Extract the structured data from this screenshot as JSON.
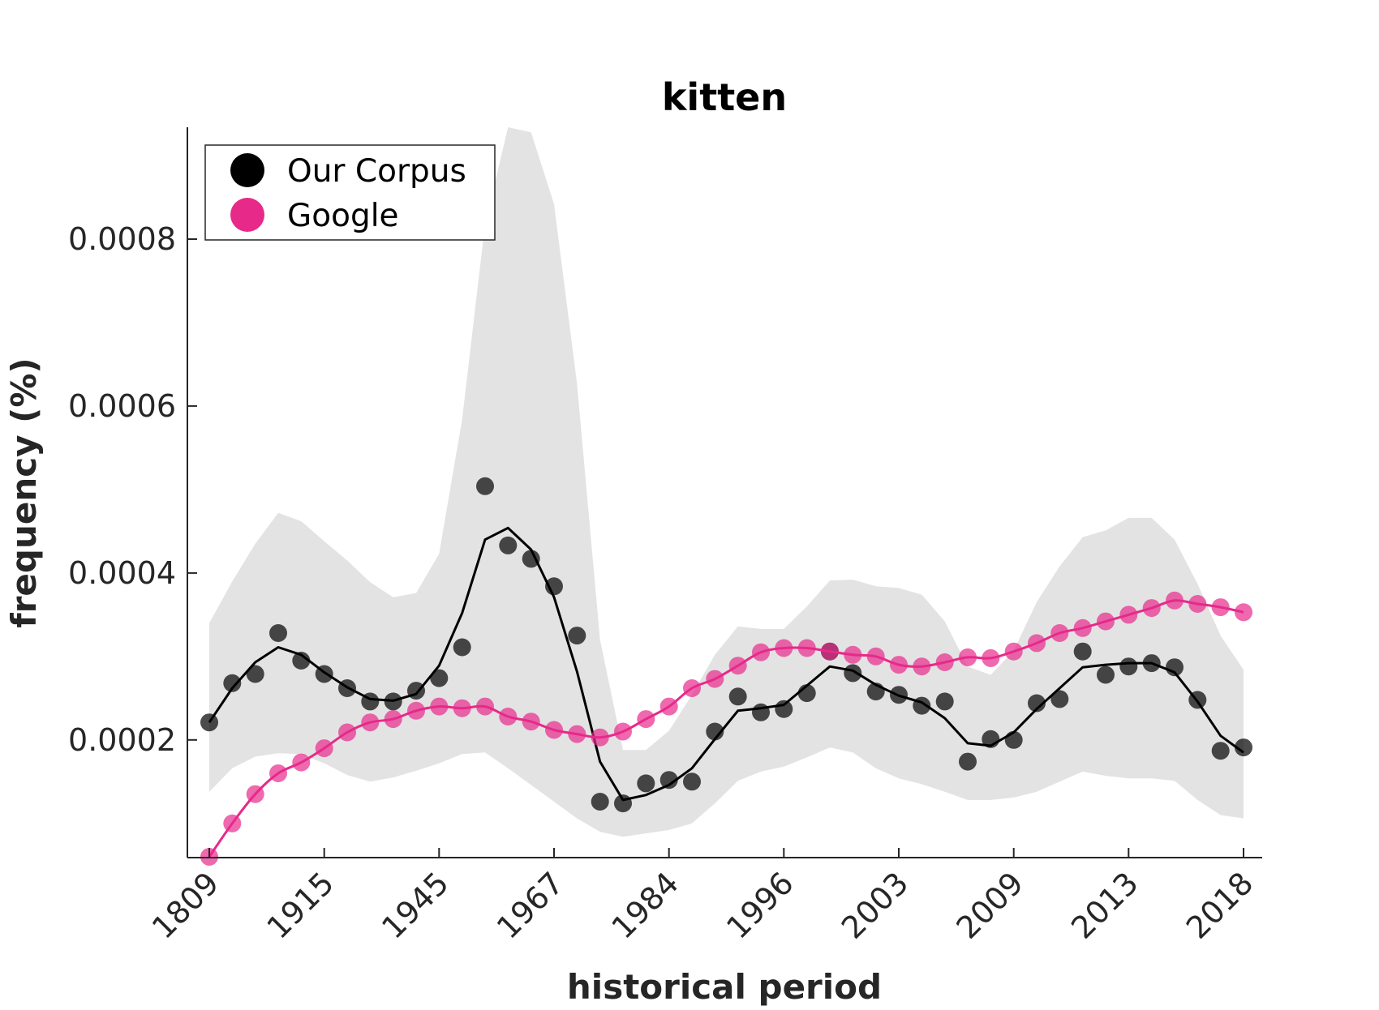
{
  "chart_data": {
    "type": "scatter",
    "title": "kitten",
    "xlabel": "historical period",
    "ylabel": "frequency (%)",
    "x_tick_labels": [
      "1809",
      "1915",
      "1945",
      "1967",
      "1984",
      "1996",
      "2003",
      "2009",
      "2013",
      "2018"
    ],
    "y_ticks": [
      0.0002,
      0.0004,
      0.0006,
      0.0008
    ],
    "y_tick_labels": [
      "0.0002",
      "0.0004",
      "0.0006",
      "0.0008"
    ],
    "ylim": [
      5.9e-05,
      0.000934
    ],
    "legend_position": "top-left",
    "series": [
      {
        "name": "Our Corpus",
        "color": "#000000",
        "points": [
          0.000221,
          0.000268,
          0.000279,
          0.000328,
          0.000295,
          0.000279,
          0.000262,
          0.000246,
          0.000246,
          0.000259,
          0.000274,
          0.000311,
          0.000504,
          0.000433,
          0.000417,
          0.000384,
          0.000325,
          0.000126,
          0.000124,
          0.000148,
          0.000152,
          0.00015,
          0.00021,
          0.000252,
          0.000233,
          0.000237,
          0.000256,
          0.000306,
          0.00028,
          0.000258,
          0.000254,
          0.000241,
          0.000246,
          0.000174,
          0.000201,
          0.0002,
          0.000244,
          0.000249,
          0.000306,
          0.000278,
          0.000288,
          0.000292,
          0.000287,
          0.000248,
          0.000187,
          0.000191
        ],
        "smoothed": [
          0.000221,
          0.000262,
          0.000293,
          0.000311,
          0.000302,
          0.000281,
          0.000263,
          0.000249,
          0.000247,
          0.000255,
          0.000289,
          0.000352,
          0.00044,
          0.000454,
          0.000428,
          0.000371,
          0.000282,
          0.000174,
          0.000128,
          0.000134,
          0.000146,
          0.000166,
          0.000201,
          0.000235,
          0.000238,
          0.000242,
          0.000265,
          0.000288,
          0.000283,
          0.000266,
          0.000253,
          0.000245,
          0.000226,
          0.000196,
          0.000193,
          0.000209,
          0.000237,
          0.000262,
          0.000287,
          0.00029,
          0.000292,
          0.000292,
          0.000281,
          0.000246,
          0.000205,
          0.000185
        ],
        "band_upper": [
          0.00034,
          0.00039,
          0.000435,
          0.000472,
          0.000462,
          0.000438,
          0.000415,
          0.000389,
          0.000371,
          0.000376,
          0.000423,
          0.000584,
          0.000818,
          0.000934,
          0.000928,
          0.000842,
          0.000627,
          0.00032,
          0.000188,
          0.000188,
          0.000211,
          0.000254,
          0.000302,
          0.000336,
          0.000333,
          0.000333,
          0.00036,
          0.000391,
          0.000392,
          0.000384,
          0.000382,
          0.000374,
          0.000342,
          0.000288,
          0.000278,
          0.000307,
          0.000365,
          0.000408,
          0.000443,
          0.000451,
          0.000466,
          0.000466,
          0.00044,
          0.000387,
          0.000325,
          0.000284
        ],
        "band_lower": [
          0.000138,
          0.000166,
          0.00018,
          0.000184,
          0.000183,
          0.000172,
          0.000158,
          0.00015,
          0.000155,
          0.000163,
          0.000172,
          0.000183,
          0.000185,
          0.000166,
          0.000146,
          0.000126,
          0.000106,
          9e-05,
          8.4e-05,
          8.8e-05,
          9.2e-05,
          0.0001,
          0.000124,
          0.000151,
          0.000162,
          0.000168,
          0.000179,
          0.000191,
          0.000185,
          0.000166,
          0.000154,
          0.000147,
          0.000138,
          0.000128,
          0.000128,
          0.000131,
          0.000138,
          0.00015,
          0.000162,
          0.000157,
          0.000154,
          0.000154,
          0.000151,
          0.000128,
          0.00011,
          0.000106
        ]
      },
      {
        "name": "Google",
        "color": "#e7298a",
        "points": [
          6e-05,
          0.0001,
          0.000135,
          0.00016,
          0.000173,
          0.00019,
          0.000209,
          0.000221,
          0.000225,
          0.000235,
          0.00024,
          0.000238,
          0.00024,
          0.000228,
          0.000222,
          0.000212,
          0.000207,
          0.000203,
          0.00021,
          0.000225,
          0.00024,
          0.000262,
          0.000273,
          0.000289,
          0.000305,
          0.00031,
          0.00031,
          0.000306,
          0.000302,
          0.0003,
          0.00029,
          0.000288,
          0.000293,
          0.000299,
          0.000298,
          0.000306,
          0.000316,
          0.000328,
          0.000334,
          0.000342,
          0.00035,
          0.000358,
          0.000367,
          0.000363,
          0.000359,
          0.000353
        ]
      }
    ]
  },
  "legend": {
    "items": [
      {
        "label": "Our Corpus",
        "color": "#000000"
      },
      {
        "label": "Google",
        "color": "#e7298a"
      }
    ]
  }
}
